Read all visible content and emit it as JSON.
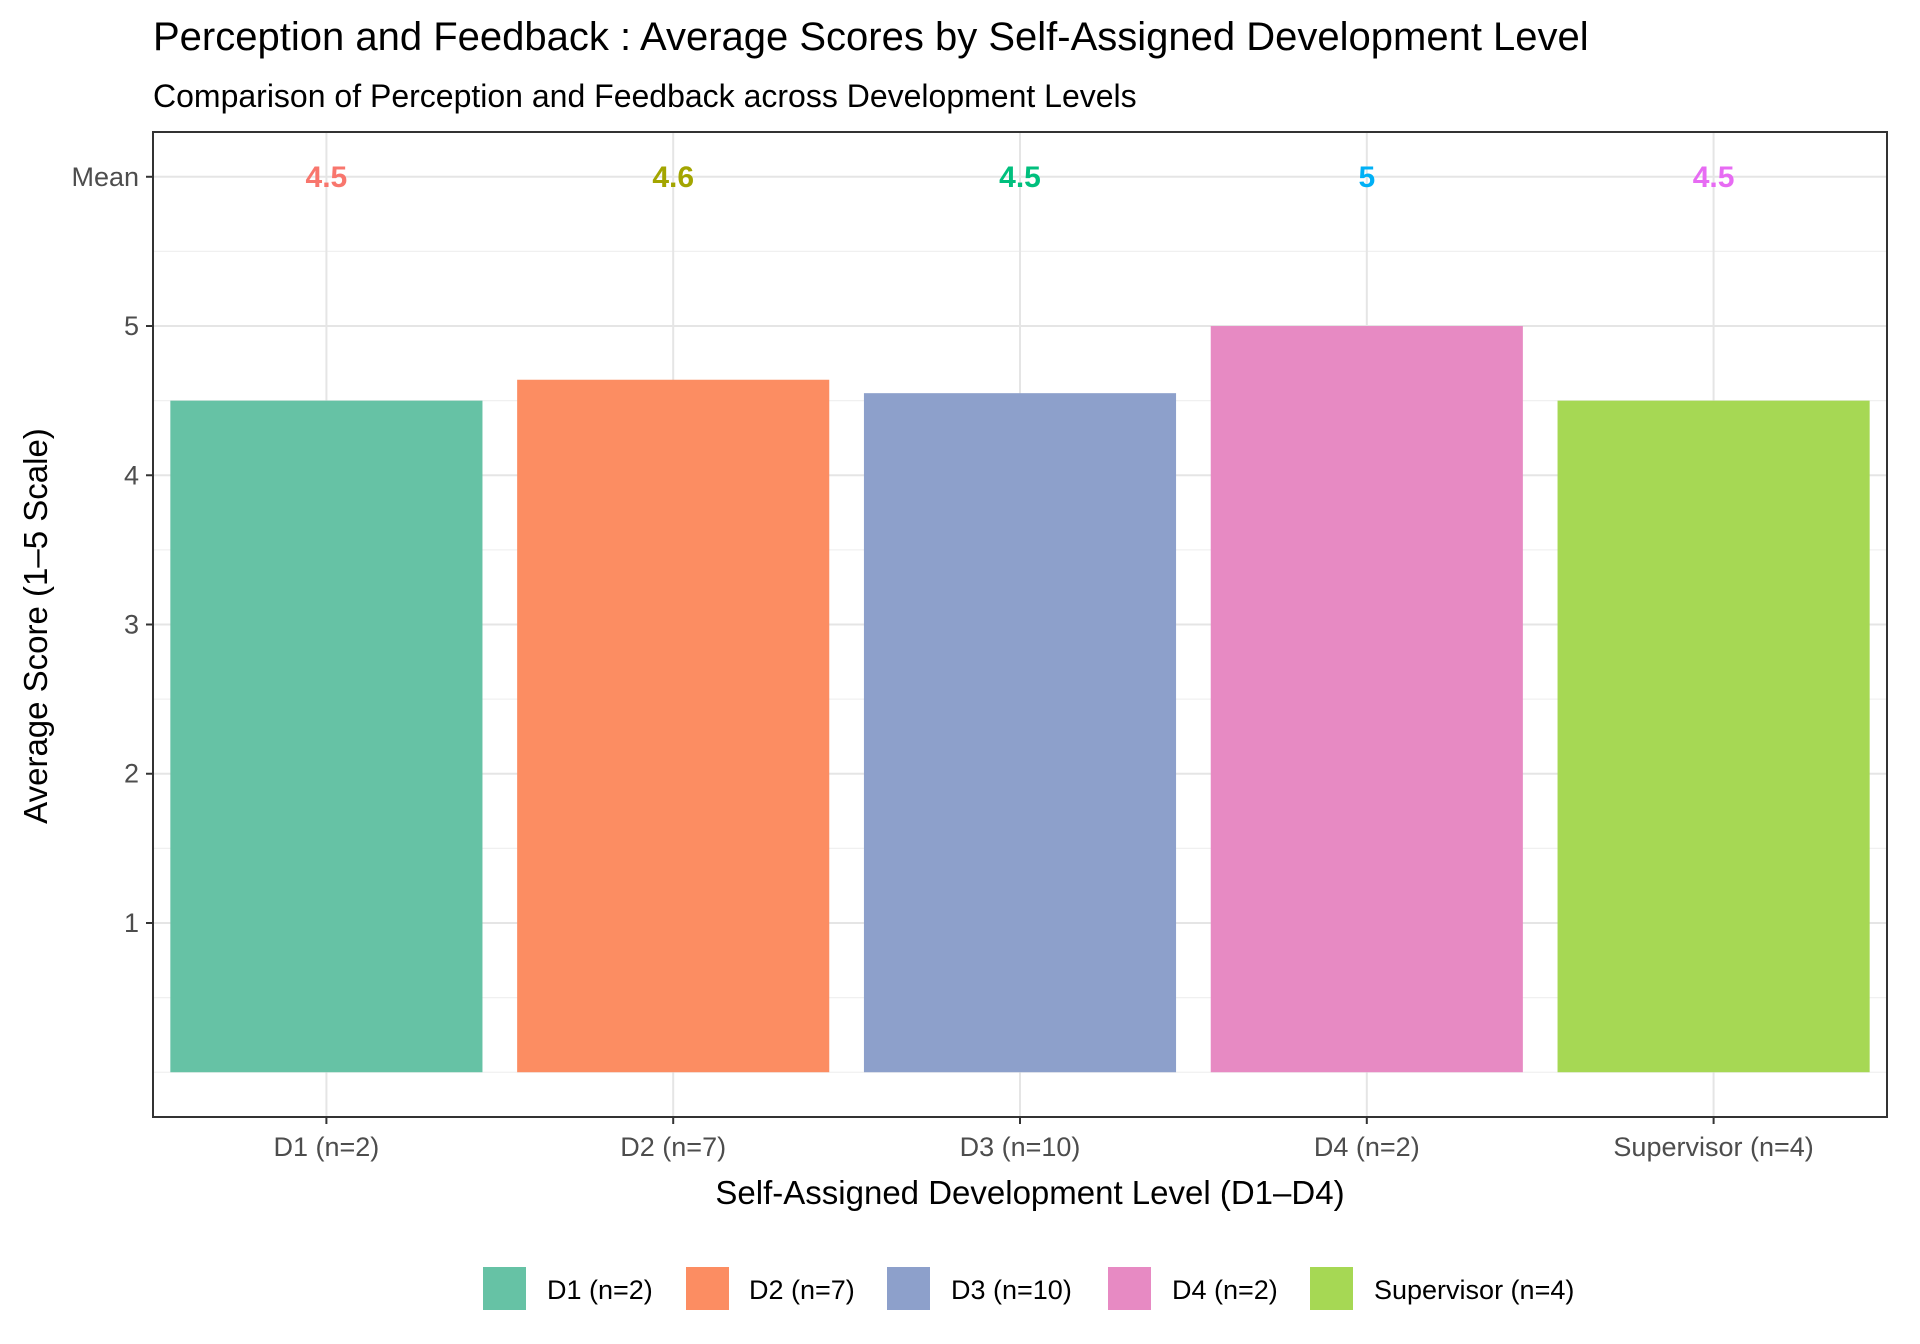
{
  "chart_data": {
    "type": "bar",
    "title": "Perception and Feedback : Average Scores by Self-Assigned Development Level",
    "subtitle": "Comparison of Perception and Feedback across Development Levels",
    "xlabel": "Self-Assigned Development Level (D1–D4)",
    "ylabel": "Average Score (1–5 Scale)",
    "categories": [
      "D1 (n=2)",
      "D2 (n=7)",
      "D3 (n=10)",
      "D4 (n=2)",
      "Supervisor (n=4)"
    ],
    "values": [
      4.5,
      4.64,
      4.55,
      5.0,
      4.5
    ],
    "bar_colors": [
      "#66C2A5",
      "#FC8D62",
      "#8DA0CB",
      "#E78AC3",
      "#A6D854"
    ],
    "y_ticks": [
      1,
      2,
      3,
      4,
      5
    ],
    "y_tick_labels": [
      "1",
      "2",
      "3",
      "4",
      "5"
    ],
    "mean_row_label": "Mean",
    "mean_row_y": 6,
    "mean_labels": [
      "4.5",
      "4.6",
      "4.5",
      "5",
      "4.5"
    ],
    "mean_label_colors": [
      "#F8766D",
      "#A3A500",
      "#00BF7D",
      "#00B0F6",
      "#E76BF3"
    ],
    "ylim": [
      -0.3,
      6.3
    ],
    "grid": true,
    "legend": {
      "position": "bottom",
      "entries": [
        "D1 (n=2)",
        "D2 (n=7)",
        "D3 (n=10)",
        "D4 (n=2)",
        "Supervisor (n=4)"
      ]
    }
  }
}
